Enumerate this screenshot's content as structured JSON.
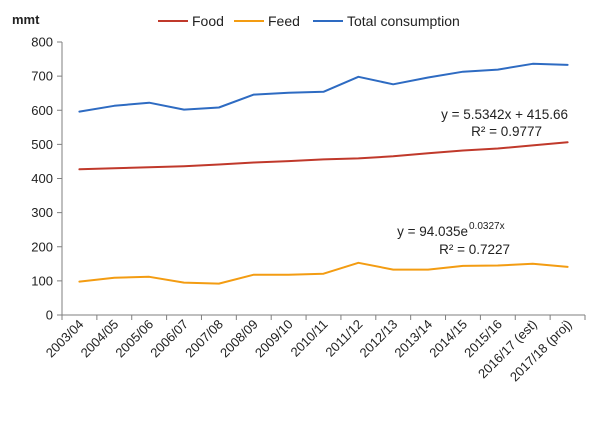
{
  "chart_data": {
    "type": "line",
    "ylabel": "mmt",
    "ylim": [
      0,
      800
    ],
    "yticks": [
      "0",
      "100",
      "200",
      "300",
      "400",
      "500",
      "600",
      "700",
      "800"
    ],
    "grid": false,
    "legend_position": "top",
    "categories": [
      "2003/04",
      "2004/05",
      "2005/06",
      "2006/07",
      "2007/08",
      "2008/09",
      "2009/10",
      "2010/11",
      "2011/12",
      "2012/13",
      "2013/14",
      "2014/15",
      "2015/16",
      "2016/17 (est)",
      "2017/18 (proj)"
    ],
    "series": [
      {
        "name": "Food",
        "color": "#c0392b",
        "values": [
          427,
          430,
          433,
          436,
          441,
          447,
          451,
          456,
          459,
          465,
          474,
          482,
          488,
          497,
          506
        ]
      },
      {
        "name": "Feed",
        "color": "#f39c12",
        "values": [
          98,
          109,
          112,
          95,
          92,
          118,
          118,
          121,
          153,
          133,
          133,
          144,
          145,
          150,
          141
        ]
      },
      {
        "name": "Total consumption",
        "color": "#2e6bc2",
        "values": [
          596,
          613,
          622,
          602,
          608,
          646,
          651,
          654,
          698,
          676,
          696,
          713,
          719,
          736,
          733
        ]
      }
    ],
    "annotations": [
      {
        "id": "total-trendline",
        "line1": "y = 5.5342x + 415.66",
        "line2": "R² = 0.9777"
      },
      {
        "id": "feed-trendline",
        "line1_base": "y = 94.035e",
        "line1_exponent": "0.0327x",
        "line2": "R² = 0.7227"
      }
    ]
  }
}
